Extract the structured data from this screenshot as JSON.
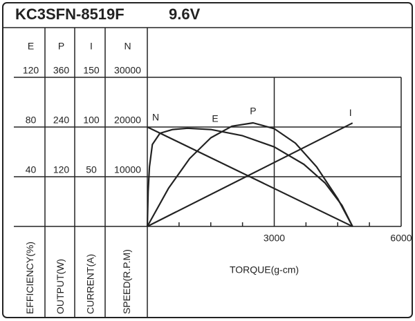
{
  "chart_data": {
    "type": "line",
    "title": "KC3SFN-8519F",
    "subtitle": "9.6V",
    "x_label": "TORQUE(g-cm)",
    "xlim": [
      0,
      6000
    ],
    "xticks": [
      3000,
      6000
    ],
    "xminorticks": [
      750,
      1500,
      2250,
      3750,
      4500,
      5250
    ],
    "grid": true,
    "axes": [
      {
        "name": "E",
        "label": "EFFICIENCY(%)",
        "ylim": [
          0,
          120
        ],
        "yticks": [
          120,
          80,
          40
        ]
      },
      {
        "name": "P",
        "label": "OUTPUT(W)",
        "ylim": [
          0,
          360
        ],
        "yticks": [
          360,
          240,
          120
        ]
      },
      {
        "name": "I",
        "label": "CURRENT(A)",
        "ylim": [
          0,
          150
        ],
        "yticks": [
          150,
          100,
          50
        ]
      },
      {
        "name": "N",
        "label": "SPEED(R.P.M)",
        "ylim": [
          0,
          30000
        ],
        "yticks": [
          30000,
          20000,
          10000
        ]
      }
    ],
    "series": [
      {
        "name": "N",
        "axis": "N",
        "color": "#222222",
        "x": [
          0,
          4850
        ],
        "values": [
          20000,
          0
        ]
      },
      {
        "name": "E",
        "axis": "E",
        "color": "#222222",
        "x": [
          0,
          20,
          50,
          120,
          300,
          600,
          950,
          1500,
          2250,
          3000,
          3700,
          4200,
          4600,
          4850
        ],
        "values": [
          0,
          28,
          48,
          66,
          75,
          78,
          79,
          78,
          73,
          64,
          50,
          35,
          17,
          0
        ]
      },
      {
        "name": "P",
        "axis": "P",
        "color": "#222222",
        "x": [
          0,
          500,
          1000,
          1500,
          2000,
          2500,
          3000,
          3500,
          4000,
          4500,
          4850
        ],
        "values": [
          0,
          92,
          164,
          214,
          242,
          250,
          236,
          201,
          144,
          67,
          0
        ]
      },
      {
        "name": "I",
        "axis": "I",
        "color": "#222222",
        "x": [
          0,
          4850
        ],
        "values": [
          0,
          104
        ]
      }
    ]
  }
}
